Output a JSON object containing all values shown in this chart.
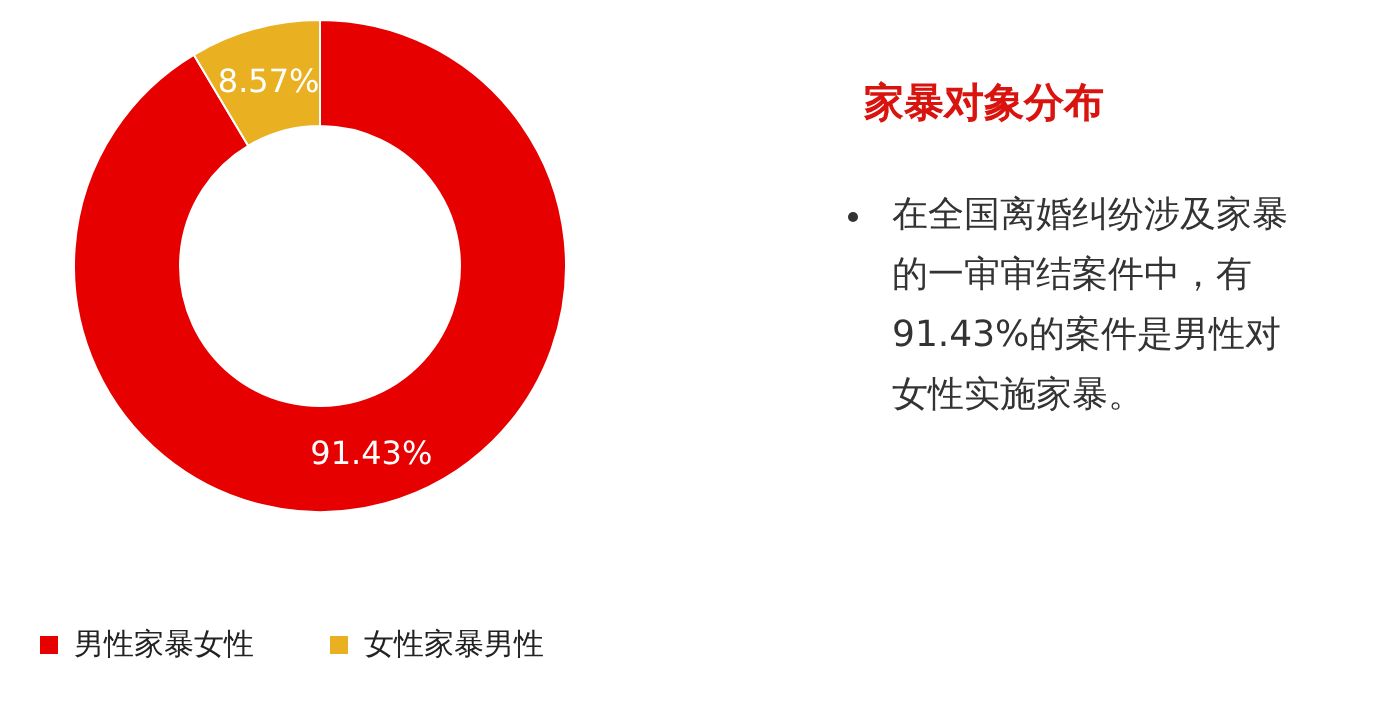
{
  "chart_data": [
    {
      "type": "donut",
      "categories": [
        "男性家暴女性",
        "女性家暴男性"
      ],
      "values": [
        91.43,
        8.57
      ],
      "colors": [
        "#e60000",
        "#e9b021"
      ],
      "value_labels": [
        "91.43%",
        "8.57%"
      ],
      "legend": "bottom"
    },
    {
      "type": "other",
      "title": "家暴对象分布",
      "annotations": [
        "在全国离婚纠纷涉及家暴的一审审结案件中，有91.43%的案件是男性对女性实施家暴。"
      ]
    }
  ]
}
